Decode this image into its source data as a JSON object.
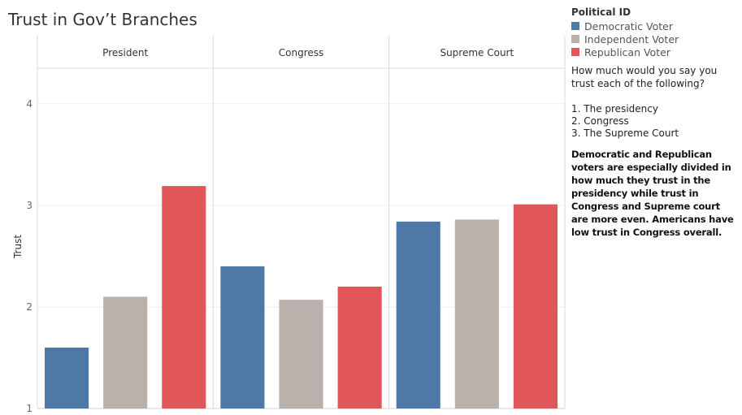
{
  "chart_data": {
    "type": "bar",
    "title": "Trust in Gov’t Branches",
    "ylabel": "Trust",
    "xlabel": "",
    "ylim": [
      1,
      4.35
    ],
    "yticks": [
      1,
      2,
      3,
      4
    ],
    "grid": true,
    "categories": [
      "President",
      "Congress",
      "Supreme Court"
    ],
    "legend": {
      "title": "Political ID",
      "placement": "top-right",
      "items": [
        {
          "name": "Democratic Voter",
          "color": "#4e79a7"
        },
        {
          "name": "Independent Voter",
          "color": "#bab0ac"
        },
        {
          "name": "Republican Voter",
          "color": "#e15759"
        }
      ]
    },
    "series": [
      {
        "name": "Democratic Voter",
        "color": "#4e79a7",
        "values": [
          1.6,
          2.4,
          2.84
        ]
      },
      {
        "name": "Independent Voter",
        "color": "#bab0ac",
        "values": [
          2.1,
          2.07,
          2.86
        ]
      },
      {
        "name": "Republican Voter",
        "color": "#e15759",
        "values": [
          3.19,
          2.2,
          3.01
        ]
      }
    ]
  },
  "annotation": {
    "question": "How much would you say you trust each of the following?",
    "items": [
      "1. The presidency",
      "2. Congress",
      "3. The Supreme Court"
    ],
    "insight": "Democratic and Republican voters are especially divided in how much they trust in the presidency while trust in Congress and Supreme court are more even. Americans have low trust in Congress overall."
  }
}
